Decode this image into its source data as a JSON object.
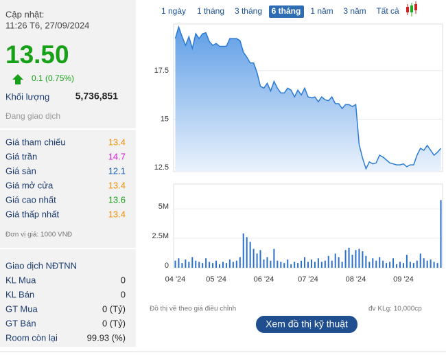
{
  "header": {
    "updated_label": "Cập nhật:",
    "updated_time": "11:26 T6, 27/09/2024"
  },
  "quote": {
    "price": "13.50",
    "change": "0.1 (0.75%)",
    "volume_label": "Khối lượng",
    "volume": "5,736,851",
    "status": "Đang giao dịch"
  },
  "price_table": [
    {
      "label": "Giá tham chiếu",
      "value": "13.4",
      "color": "#f0900a"
    },
    {
      "label": "Giá trần",
      "value": "14.7",
      "color": "#d81bd8"
    },
    {
      "label": "Giá sàn",
      "value": "12.1",
      "color": "#1a62b5"
    },
    {
      "label": "Giá mở cửa",
      "value": "13.4",
      "color": "#f0900a"
    },
    {
      "label": "Giá cao nhất",
      "value": "13.6",
      "color": "#18a018"
    },
    {
      "label": "Giá thấp nhất",
      "value": "13.4",
      "color": "#f0900a"
    }
  ],
  "unit_note": "Đơn vị giá: 1000 VNĐ",
  "foreign": {
    "title": "Giao dịch NĐTNN",
    "rows": [
      {
        "label": "KL Mua",
        "value": "0"
      },
      {
        "label": "KL Bán",
        "value": "0"
      },
      {
        "label": "GT Mua",
        "value": "0 (Tỷ)"
      },
      {
        "label": "GT Bán",
        "value": "0 (Tỷ)"
      },
      {
        "label": "Room còn lại",
        "value": "99.93 (%)"
      }
    ]
  },
  "tabs": [
    "1 ngày",
    "1 tháng",
    "3 tháng",
    "6 tháng",
    "1 năm",
    "3 năm",
    "Tất cả"
  ],
  "active_tab": 3,
  "chart_data": [
    {
      "type": "area",
      "series": [
        {
          "color": "#2a7ad5",
          "values": [
            19.15,
            19.75,
            19.25,
            18.8,
            19.25,
            18.65,
            19.4,
            19.15,
            19.4,
            19.45,
            19.0,
            18.8,
            18.9,
            18.75,
            18.75,
            18.75,
            19.15,
            19.15,
            19.15,
            19.05,
            18.45,
            18.2,
            17.9,
            17.9,
            17.4,
            16.7,
            16.6,
            16.85,
            16.45,
            16.95,
            16.6,
            16.35,
            16.35,
            16.6,
            16.5,
            16.15,
            16.5,
            16.25,
            16.6,
            16.15,
            16.1,
            16.15,
            15.9,
            16.15,
            16.0,
            15.95,
            16.15,
            15.8,
            15.8,
            15.55,
            15.75,
            15.75,
            15.65,
            15.75,
            13.7,
            13.0,
            12.45,
            12.8,
            12.7,
            12.75,
            13.15,
            13.05,
            12.9,
            12.75,
            12.7,
            12.65,
            12.65,
            12.7,
            12.55,
            12.65,
            12.65,
            13.15,
            13.5,
            13.4,
            13.65,
            13.4,
            13.15,
            13.3,
            13.5
          ]
        }
      ],
      "ylim": [
        12.3,
        19.9
      ],
      "yticks": [
        12.5,
        15,
        17.5
      ],
      "grid": true
    },
    {
      "type": "bar",
      "categories": [
        "04 '24",
        null,
        null,
        null,
        null,
        null,
        null,
        null,
        null,
        null,
        null,
        null,
        "05 '24",
        null,
        null,
        null,
        null,
        null,
        null,
        null,
        null,
        null,
        null,
        null,
        null,
        null,
        "06 '24",
        null,
        null,
        null,
        null,
        null,
        null,
        null,
        null,
        null,
        null,
        null,
        null,
        "07 '24",
        null,
        null,
        null,
        null,
        null,
        null,
        null,
        null,
        null,
        null,
        null,
        null,
        null,
        "08 '24",
        null,
        null,
        null,
        null,
        null,
        null,
        null,
        null,
        null,
        null,
        null,
        null,
        null,
        "09 '24",
        null,
        null,
        null,
        null,
        null,
        null,
        null,
        null,
        null,
        null,
        null
      ],
      "values": [
        600000,
        800000,
        400000,
        700000,
        500000,
        900000,
        600000,
        500000,
        400000,
        800000,
        500000,
        400000,
        600000,
        300000,
        500000,
        400000,
        700000,
        500000,
        600000,
        900000,
        2900000,
        2600000,
        2200000,
        1600000,
        1200000,
        1500000,
        700000,
        900000,
        600000,
        1600000,
        600000,
        500000,
        400000,
        700000,
        300000,
        500000,
        400000,
        600000,
        900000,
        500000,
        700000,
        500000,
        800000,
        500000,
        600000,
        1000000,
        600000,
        1200000,
        900000,
        500000,
        1500000,
        1700000,
        1100000,
        1500000,
        1600000,
        1400000,
        1000000,
        500000,
        800000,
        600000,
        900000,
        600000,
        400000,
        500000,
        800000,
        300000,
        500000,
        400000,
        1100000,
        500000,
        400000,
        600000,
        1200000,
        800000,
        600000,
        700000,
        500000,
        400000,
        5736851
      ],
      "color": "#2a6fc9",
      "ylim": [
        0,
        7100000
      ],
      "yticks": [
        0,
        {
          "value": 2500000,
          "label": "2.5M"
        },
        {
          "value": 5000000,
          "label": "5M"
        }
      ],
      "grid": true
    }
  ],
  "footer": {
    "note": "Đồ thị vẽ theo giá điều chỉnh",
    "unit": "đv KLg: 10,000cp",
    "button": "Xem đồ thị kỹ thuật"
  }
}
